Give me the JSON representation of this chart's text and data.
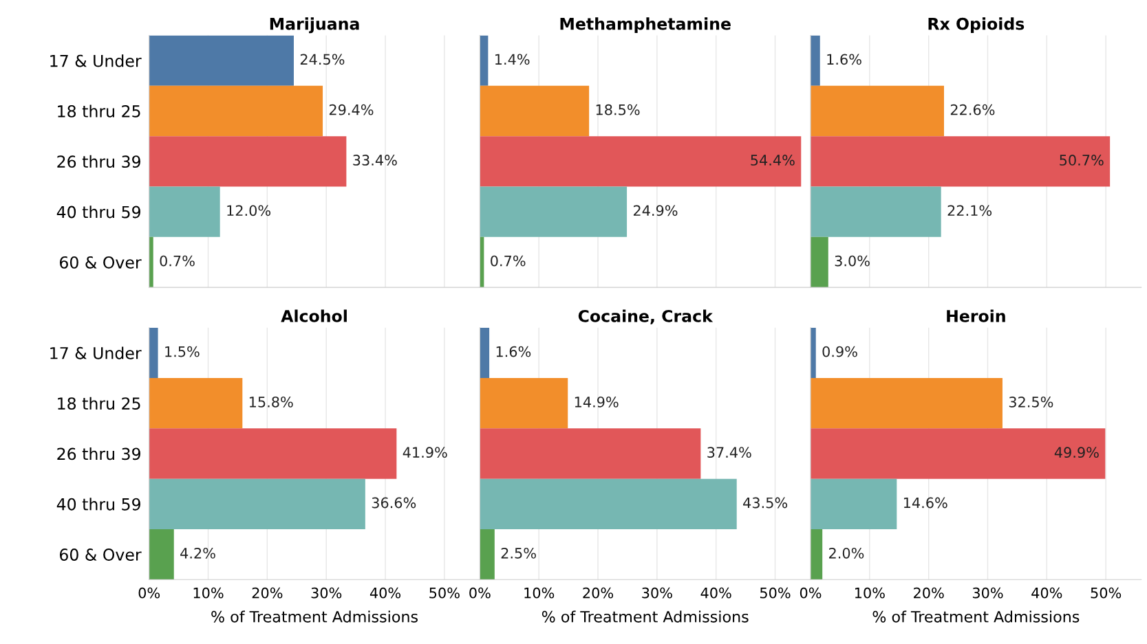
{
  "chart_data": [
    {
      "type": "bar",
      "orientation": "horizontal",
      "title": "Marijuana",
      "categories": [
        "17 & Under",
        "18 thru 25",
        "26 thru 39",
        "40 thru 59",
        "60 & Over"
      ],
      "values": [
        24.5,
        29.4,
        33.4,
        12.0,
        0.7
      ],
      "value_labels": [
        "24.5%",
        "29.4%",
        "33.4%",
        "12.0%",
        "0.7%"
      ],
      "colors": [
        "#4e79a7",
        "#f28e2b",
        "#e15759",
        "#76b7b2",
        "#59a14f"
      ],
      "xlim": [
        0,
        56
      ],
      "xticks": [
        {
          "value": 0,
          "label": null
        },
        {
          "value": 10,
          "label": null
        },
        {
          "value": 20,
          "label": null
        },
        {
          "value": 30,
          "label": null
        },
        {
          "value": 40,
          "label": null
        },
        {
          "value": 50,
          "label": null
        }
      ],
      "grid": "x",
      "tick_labels": "y"
    },
    {
      "type": "bar",
      "orientation": "horizontal",
      "title": "Methamphetamine",
      "categories": [
        null,
        null,
        null,
        null,
        null
      ],
      "values": [
        1.4,
        18.5,
        54.4,
        24.9,
        0.7
      ],
      "value_labels": [
        "1.4%",
        "18.5%",
        "54.4%",
        "24.9%",
        "0.7%"
      ],
      "colors": [
        "#4e79a7",
        "#f28e2b",
        "#e15759",
        "#76b7b2",
        "#59a14f"
      ],
      "xlim": [
        0,
        56
      ],
      "xticks": [
        {
          "value": 0,
          "label": null
        },
        {
          "value": 10,
          "label": null
        },
        {
          "value": 20,
          "label": null
        },
        {
          "value": 30,
          "label": null
        },
        {
          "value": 40,
          "label": null
        },
        {
          "value": 50,
          "label": null
        }
      ],
      "grid": "x",
      "tick_labels": false
    },
    {
      "type": "bar",
      "orientation": "horizontal",
      "title": "Rx Opioids",
      "categories": [
        null,
        null,
        null,
        null,
        null
      ],
      "values": [
        1.6,
        22.6,
        50.7,
        22.1,
        3.0
      ],
      "value_labels": [
        "1.6%",
        "22.6%",
        "50.7%",
        "22.1%",
        "3.0%"
      ],
      "colors": [
        "#4e79a7",
        "#f28e2b",
        "#e15759",
        "#76b7b2",
        "#59a14f"
      ],
      "xlim": [
        0,
        56
      ],
      "xticks": [
        {
          "value": 0,
          "label": null
        },
        {
          "value": 10,
          "label": null
        },
        {
          "value": 20,
          "label": null
        },
        {
          "value": 30,
          "label": null
        },
        {
          "value": 40,
          "label": null
        },
        {
          "value": 50,
          "label": null
        }
      ],
      "grid": "x",
      "tick_labels": false
    },
    {
      "type": "bar",
      "orientation": "horizontal",
      "title": "Alcohol",
      "xlabel": "% of Treatment Admissions",
      "categories": [
        "17 & Under",
        "18 thru 25",
        "26 thru 39",
        "40 thru 59",
        "60 & Over"
      ],
      "values": [
        1.5,
        15.8,
        41.9,
        36.6,
        4.2
      ],
      "value_labels": [
        "1.5%",
        "15.8%",
        "41.9%",
        "36.6%",
        "4.2%"
      ],
      "colors": [
        "#4e79a7",
        "#f28e2b",
        "#e15759",
        "#76b7b2",
        "#59a14f"
      ],
      "xlim": [
        0,
        56
      ],
      "xticks": [
        {
          "value": 0,
          "label": "0%"
        },
        {
          "value": 10,
          "label": "10%"
        },
        {
          "value": 20,
          "label": "20%"
        },
        {
          "value": 30,
          "label": "30%"
        },
        {
          "value": 40,
          "label": "40%"
        },
        {
          "value": 50,
          "label": "50%"
        }
      ],
      "grid": "x"
    },
    {
      "type": "bar",
      "orientation": "horizontal",
      "title": "Cocaine, Crack",
      "xlabel": "% of Treatment Admissions",
      "categories": [
        null,
        null,
        null,
        null,
        null
      ],
      "values": [
        1.6,
        14.9,
        37.4,
        43.5,
        2.5
      ],
      "value_labels": [
        "1.6%",
        "14.9%",
        "37.4%",
        "43.5%",
        "2.5%"
      ],
      "colors": [
        "#4e79a7",
        "#f28e2b",
        "#e15759",
        "#76b7b2",
        "#59a14f"
      ],
      "xlim": [
        0,
        56
      ],
      "xticks": [
        {
          "value": 0,
          "label": "0%"
        },
        {
          "value": 10,
          "label": "10%"
        },
        {
          "value": 20,
          "label": "20%"
        },
        {
          "value": 30,
          "label": "30%"
        },
        {
          "value": 40,
          "label": "40%"
        },
        {
          "value": 50,
          "label": "50%"
        }
      ],
      "grid": "x",
      "tick_labels": "x"
    },
    {
      "type": "bar",
      "orientation": "horizontal",
      "title": "Heroin",
      "xlabel": "% of Treatment Admissions",
      "categories": [
        null,
        null,
        null,
        null,
        null
      ],
      "values": [
        0.9,
        32.5,
        49.9,
        14.6,
        2.0
      ],
      "value_labels": [
        "0.9%",
        "32.5%",
        "49.9%",
        "14.6%",
        "2.0%"
      ],
      "colors": [
        "#4e79a7",
        "#f28e2b",
        "#e15759",
        "#76b7b2",
        "#59a14f"
      ],
      "xlim": [
        0,
        56
      ],
      "xticks": [
        {
          "value": 0,
          "label": "0%"
        },
        {
          "value": 10,
          "label": "10%"
        },
        {
          "value": 20,
          "label": "20%"
        },
        {
          "value": 30,
          "label": "30%"
        },
        {
          "value": 40,
          "label": "40%"
        },
        {
          "value": 50,
          "label": "50%"
        }
      ],
      "grid": "x",
      "tick_labels": "x"
    }
  ]
}
